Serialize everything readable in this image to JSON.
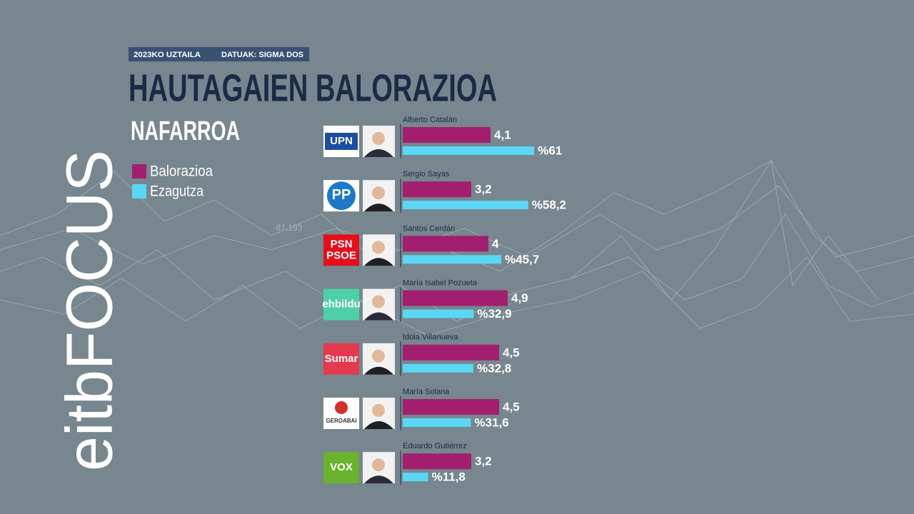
{
  "chart_data": {
    "type": "bar",
    "orientation": "horizontal",
    "date": "2023KO UZTAILA",
    "source": "DATUAK: SIGMA DOS",
    "title": "HAUTAGAIEN BALORAZIOA",
    "subtitle": "NAFARROA",
    "categories": [
      "Alberto Catalán",
      "Sergio Sayas",
      "Santos Cerdán",
      "María Isabel Pozueta",
      "Idoia Villanueva",
      "María Solana",
      "Eduardo Gutiérrez"
    ],
    "parties": [
      "UPN",
      "PP",
      "PSN\nPSOE",
      "ehbildu",
      "Sumar",
      "GEROABAI",
      "VOX"
    ],
    "series": [
      {
        "name": "Balorazioa",
        "color": "#a21f6f",
        "values": [
          4.1,
          3.2,
          4,
          4.9,
          4.5,
          4.5,
          3.2
        ],
        "value_labels": [
          "4,1",
          "3,2",
          "4",
          "4,9",
          "4,5",
          "4,5",
          "3,2"
        ]
      },
      {
        "name": "Ezagutza",
        "color": "#5ad7f4",
        "values": [
          61,
          58.2,
          45.7,
          32.9,
          32.8,
          31.6,
          11.8
        ],
        "value_labels": [
          "%61",
          "%58,2",
          "%45,7",
          "%32,9",
          "%32,8",
          "%31,6",
          "%11,8"
        ]
      }
    ]
  },
  "branding": {
    "logo": "eitbFOCUS",
    "background_label": "-87,193"
  }
}
